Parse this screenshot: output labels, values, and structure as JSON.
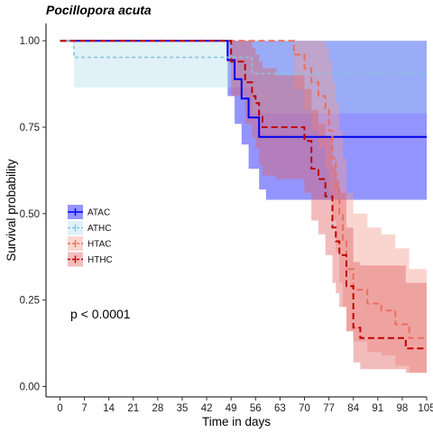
{
  "chart_data": {
    "type": "line",
    "title": "Pocillopora acuta",
    "xlabel": "Time in days",
    "ylabel": "Survival probability",
    "xlim": [
      -4,
      105
    ],
    "ylim": [
      -0.03,
      1.05
    ],
    "xticks": [
      0,
      7,
      14,
      21,
      28,
      35,
      42,
      49,
      56,
      63,
      70,
      77,
      84,
      91,
      98,
      105
    ],
    "yticks": [
      0.0,
      0.25,
      0.5,
      0.75,
      1.0
    ],
    "ytick_labels": [
      "0.00",
      "0.25",
      "0.50",
      "0.75",
      "1.00"
    ],
    "annotation": "p < 0.0001",
    "legend_position": "left-middle",
    "series": [
      {
        "name": "ATAC",
        "color": "#0000ee",
        "fill": "#0000ff",
        "dashed": false,
        "x": [
          0,
          48,
          50,
          52,
          54,
          57,
          59,
          105
        ],
        "y": [
          1.0,
          0.944,
          0.889,
          0.833,
          0.778,
          0.722,
          0.722,
          0.722
        ],
        "upper": [
          1.0,
          1.0,
          1.0,
          1.0,
          1.0,
          1.0,
          1.0,
          1.0
        ],
        "lower": [
          1.0,
          0.84,
          0.76,
          0.7,
          0.63,
          0.57,
          0.54,
          0.54
        ]
      },
      {
        "name": "ATHC",
        "color": "#8cc4dc",
        "fill": "#a7d8e8",
        "dashed": true,
        "x": [
          0,
          4,
          55,
          105
        ],
        "y": [
          1.0,
          0.952,
          0.905,
          0.905
        ],
        "upper": [
          1.0,
          1.0,
          1.0,
          1.0
        ],
        "lower": [
          1.0,
          0.865,
          0.79,
          0.79
        ]
      },
      {
        "name": "HTAC",
        "color": "#e87060",
        "fill": "#f49a8e",
        "dashed": true,
        "x": [
          0,
          67,
          70,
          72,
          74,
          76,
          77,
          78,
          79,
          80,
          81,
          82,
          84,
          88,
          92,
          96,
          100,
          105
        ],
        "y": [
          1.0,
          0.96,
          0.92,
          0.88,
          0.84,
          0.8,
          0.74,
          0.66,
          0.58,
          0.5,
          0.42,
          0.34,
          0.28,
          0.24,
          0.22,
          0.18,
          0.14,
          0.14
        ],
        "upper": [
          1.0,
          1.0,
          1.0,
          1.0,
          1.0,
          0.98,
          0.94,
          0.88,
          0.82,
          0.74,
          0.66,
          0.56,
          0.5,
          0.46,
          0.44,
          0.4,
          0.34,
          0.34
        ],
        "lower": [
          1.0,
          0.86,
          0.8,
          0.74,
          0.69,
          0.63,
          0.56,
          0.48,
          0.39,
          0.3,
          0.23,
          0.16,
          0.13,
          0.1,
          0.09,
          0.06,
          0.04,
          0.04
        ]
      },
      {
        "name": "HTHC",
        "color": "#c00000",
        "fill": "#e06060",
        "dashed": true,
        "x": [
          0,
          49,
          53,
          55,
          56,
          57,
          58,
          62,
          66,
          70,
          72,
          74,
          76,
          78,
          79,
          80,
          82,
          84,
          86,
          88,
          94,
          99,
          105
        ],
        "y": [
          1.0,
          0.94,
          0.88,
          0.84,
          0.82,
          0.78,
          0.75,
          0.75,
          0.75,
          0.71,
          0.63,
          0.6,
          0.55,
          0.46,
          0.42,
          0.38,
          0.29,
          0.17,
          0.14,
          0.14,
          0.14,
          0.11,
          0.11
        ],
        "upper": [
          1.0,
          1.0,
          1.0,
          0.98,
          0.96,
          0.94,
          0.92,
          0.9,
          0.9,
          0.86,
          0.8,
          0.76,
          0.72,
          0.64,
          0.6,
          0.56,
          0.46,
          0.36,
          0.35,
          0.35,
          0.35,
          0.3,
          0.3
        ],
        "lower": [
          1.0,
          0.84,
          0.76,
          0.72,
          0.69,
          0.64,
          0.61,
          0.6,
          0.6,
          0.56,
          0.48,
          0.44,
          0.38,
          0.3,
          0.27,
          0.23,
          0.16,
          0.07,
          0.05,
          0.05,
          0.05,
          0.04,
          0.04
        ]
      }
    ]
  }
}
